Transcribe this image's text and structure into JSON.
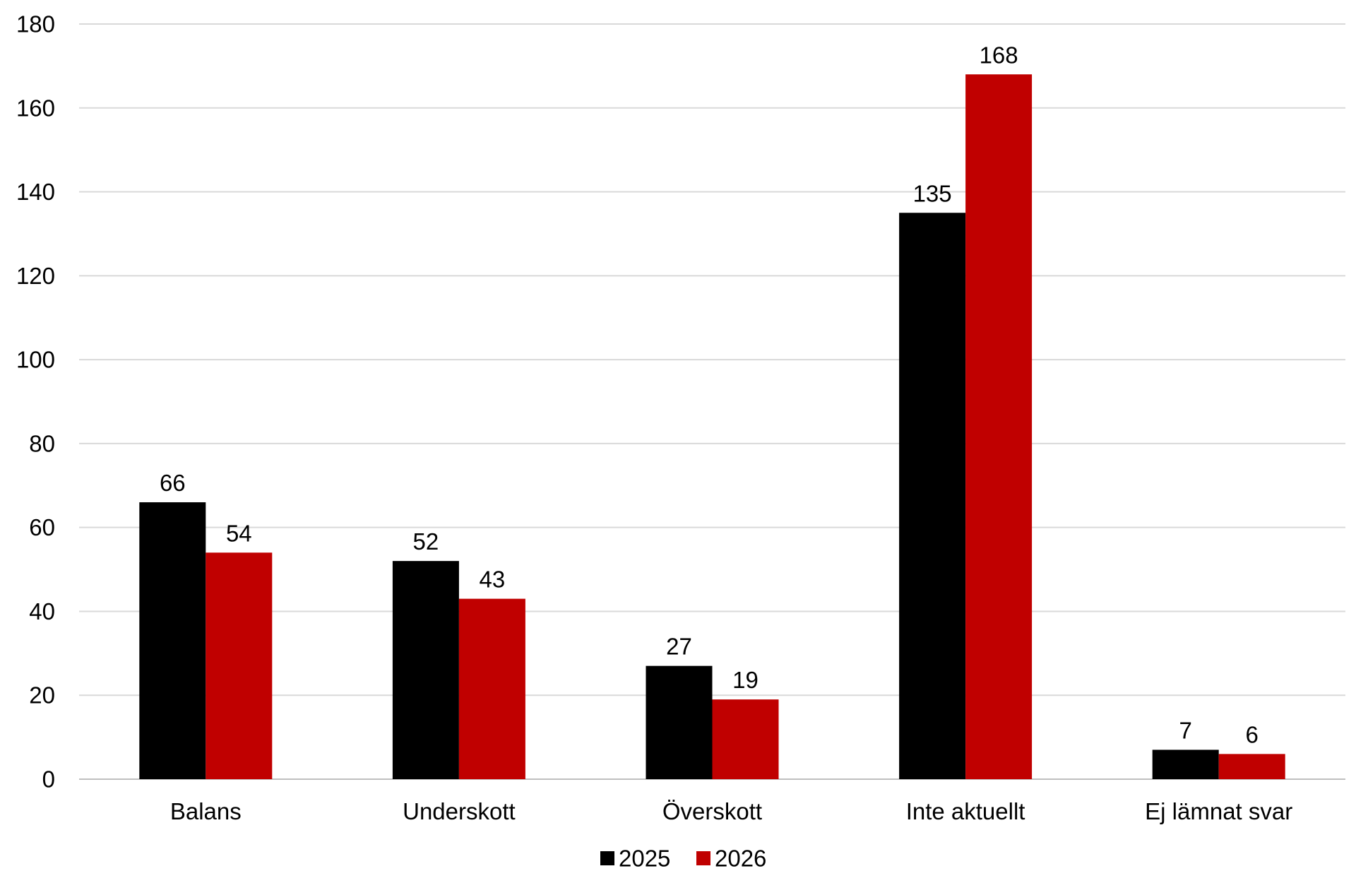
{
  "chart_data": {
    "type": "bar",
    "title": "",
    "xlabel": "",
    "ylabel": "",
    "ylim": [
      0,
      180
    ],
    "yticks": [
      0,
      20,
      40,
      60,
      80,
      100,
      120,
      140,
      160,
      180
    ],
    "grid": true,
    "legend_position": "bottom",
    "categories": [
      "Balans",
      "Underskott",
      "Överskott",
      "Inte aktuellt",
      "Ej lämnat svar"
    ],
    "series": [
      {
        "name": "2025",
        "color": "#000000",
        "values": [
          66,
          52,
          27,
          135,
          7
        ]
      },
      {
        "name": "2026",
        "color": "#c00000",
        "values": [
          54,
          43,
          19,
          168,
          6
        ]
      }
    ]
  }
}
